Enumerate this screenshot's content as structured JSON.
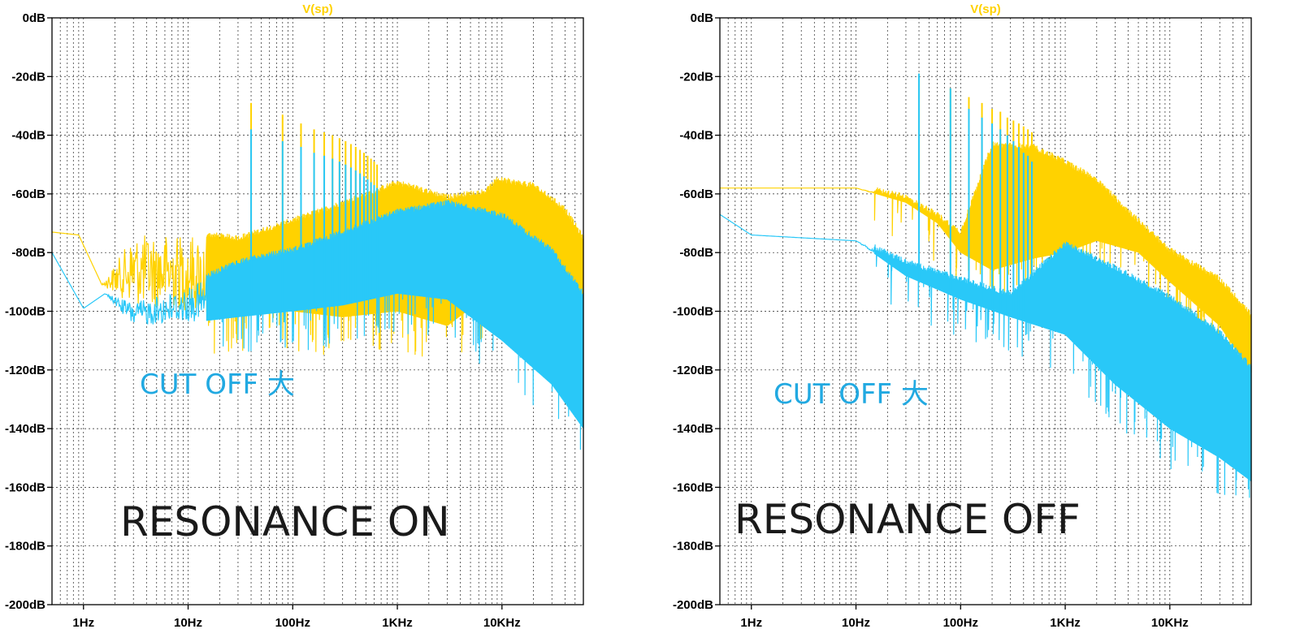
{
  "colors": {
    "yellow": "#FFD200",
    "blue": "#29C8F8",
    "note_blue": "#21A9E1",
    "grid": "#222222"
  },
  "chart_data": [
    {
      "type": "line",
      "trace_title": "V(sp)",
      "x_scale": "log",
      "xlim": [
        0.5,
        60000
      ],
      "ylim": [
        -200,
        0
      ],
      "x_ticks": [
        {
          "value": 1,
          "label": "1Hz"
        },
        {
          "value": 10,
          "label": "10Hz"
        },
        {
          "value": 100,
          "label": "100Hz"
        },
        {
          "value": 1000,
          "label": "1KHz"
        },
        {
          "value": 10000,
          "label": "10KHz"
        }
      ],
      "y_ticks": [
        {
          "value": 0,
          "label": "0dB"
        },
        {
          "value": -20,
          "label": "-20dB"
        },
        {
          "value": -40,
          "label": "-40dB"
        },
        {
          "value": -60,
          "label": "-60dB"
        },
        {
          "value": -80,
          "label": "-80dB"
        },
        {
          "value": -100,
          "label": "-100dB"
        },
        {
          "value": -120,
          "label": "-120dB"
        },
        {
          "value": -140,
          "label": "-140dB"
        },
        {
          "value": -160,
          "label": "-160dB"
        },
        {
          "value": -180,
          "label": "-180dB"
        },
        {
          "value": -200,
          "label": "-200dB"
        }
      ],
      "grid": true,
      "annotations": {
        "series_note": "CUT OFF 大",
        "mode_note": "RESONANCE ON"
      },
      "series": [
        {
          "color": "yellow",
          "envelope": [
            {
              "x": 0.5,
              "top": -73,
              "bottom": -73
            },
            {
              "x": 0.9,
              "top": -74,
              "bottom": -74
            },
            {
              "x": 1.5,
              "top": -91,
              "bottom": -91
            },
            {
              "x": 3,
              "top": -74,
              "bottom": -98
            },
            {
              "x": 10,
              "top": -74,
              "bottom": -100
            },
            {
              "x": 30,
              "top": -76,
              "bottom": -101
            },
            {
              "x": 100,
              "top": -70,
              "bottom": -100
            },
            {
              "x": 300,
              "top": -64,
              "bottom": -102
            },
            {
              "x": 1000,
              "top": -57,
              "bottom": -100
            },
            {
              "x": 3000,
              "top": -62,
              "bottom": -105
            },
            {
              "x": 7000,
              "top": -60,
              "bottom": -95
            },
            {
              "x": 9000,
              "top": -56,
              "bottom": -88
            },
            {
              "x": 20000,
              "top": -58,
              "bottom": -82
            },
            {
              "x": 40000,
              "top": -66,
              "bottom": -90
            },
            {
              "x": 60000,
              "top": -76,
              "bottom": -96
            }
          ],
          "peaks": [
            {
              "x": 40,
              "y": -29
            },
            {
              "x": 80,
              "y": -33
            },
            {
              "x": 120,
              "y": -36
            },
            {
              "x": 160,
              "y": -38
            },
            {
              "x": 200,
              "y": -39
            },
            {
              "x": 240,
              "y": -40
            },
            {
              "x": 280,
              "y": -41
            },
            {
              "x": 320,
              "y": -42
            },
            {
              "x": 360,
              "y": -43
            },
            {
              "x": 400,
              "y": -44
            },
            {
              "x": 440,
              "y": -45
            },
            {
              "x": 480,
              "y": -46
            },
            {
              "x": 520,
              "y": -47
            },
            {
              "x": 560,
              "y": -48
            },
            {
              "x": 600,
              "y": -49
            },
            {
              "x": 640,
              "y": -50
            }
          ]
        },
        {
          "color": "blue",
          "envelope": [
            {
              "x": 0.5,
              "top": -80,
              "bottom": -80
            },
            {
              "x": 1,
              "top": -99,
              "bottom": -99
            },
            {
              "x": 1.6,
              "top": -94,
              "bottom": -94
            },
            {
              "x": 3,
              "top": -97,
              "bottom": -105
            },
            {
              "x": 10,
              "top": -92,
              "bottom": -104
            },
            {
              "x": 30,
              "top": -84,
              "bottom": -102
            },
            {
              "x": 100,
              "top": -80,
              "bottom": -100
            },
            {
              "x": 300,
              "top": -74,
              "bottom": -98
            },
            {
              "x": 1000,
              "top": -67,
              "bottom": -94
            },
            {
              "x": 3000,
              "top": -64,
              "bottom": -96
            },
            {
              "x": 10000,
              "top": -68,
              "bottom": -110
            },
            {
              "x": 30000,
              "top": -80,
              "bottom": -125
            },
            {
              "x": 60000,
              "top": -95,
              "bottom": -140
            }
          ],
          "peaks": [
            {
              "x": 40,
              "y": -38
            },
            {
              "x": 80,
              "y": -42
            },
            {
              "x": 120,
              "y": -44
            },
            {
              "x": 160,
              "y": -46
            },
            {
              "x": 200,
              "y": -47
            },
            {
              "x": 240,
              "y": -48
            },
            {
              "x": 280,
              "y": -49
            },
            {
              "x": 320,
              "y": -50
            },
            {
              "x": 360,
              "y": -51
            },
            {
              "x": 400,
              "y": -52
            },
            {
              "x": 440,
              "y": -53
            },
            {
              "x": 480,
              "y": -54
            },
            {
              "x": 520,
              "y": -55
            },
            {
              "x": 560,
              "y": -56
            },
            {
              "x": 600,
              "y": -57
            },
            {
              "x": 640,
              "y": -58
            }
          ]
        }
      ]
    },
    {
      "type": "line",
      "trace_title": "V(sp)",
      "x_scale": "log",
      "xlim": [
        0.5,
        60000
      ],
      "ylim": [
        -200,
        0
      ],
      "x_ticks": [
        {
          "value": 1,
          "label": "1Hz"
        },
        {
          "value": 10,
          "label": "10Hz"
        },
        {
          "value": 100,
          "label": "100Hz"
        },
        {
          "value": 1000,
          "label": "1KHz"
        },
        {
          "value": 10000,
          "label": "10KHz"
        }
      ],
      "y_ticks": [
        {
          "value": 0,
          "label": "0dB"
        },
        {
          "value": -20,
          "label": "-20dB"
        },
        {
          "value": -40,
          "label": "-40dB"
        },
        {
          "value": -60,
          "label": "-60dB"
        },
        {
          "value": -80,
          "label": "-80dB"
        },
        {
          "value": -100,
          "label": "-100dB"
        },
        {
          "value": -120,
          "label": "-120dB"
        },
        {
          "value": -140,
          "label": "-140dB"
        },
        {
          "value": -160,
          "label": "-160dB"
        },
        {
          "value": -180,
          "label": "-180dB"
        },
        {
          "value": -200,
          "label": "-200dB"
        }
      ],
      "grid": true,
      "annotations": {
        "series_note": "CUT OFF 大",
        "mode_note": "RESONANCE OFF"
      },
      "series": [
        {
          "color": "yellow",
          "envelope": [
            {
              "x": 0.5,
              "top": -58,
              "bottom": -58
            },
            {
              "x": 10,
              "top": -58,
              "bottom": -58
            },
            {
              "x": 30,
              "top": -62,
              "bottom": -63
            },
            {
              "x": 60,
              "top": -68,
              "bottom": -70
            },
            {
              "x": 100,
              "top": -74,
              "bottom": -80
            },
            {
              "x": 200,
              "top": -44,
              "bottom": -86
            },
            {
              "x": 500,
              "top": -45,
              "bottom": -82
            },
            {
              "x": 1000,
              "top": -50,
              "bottom": -80
            },
            {
              "x": 2000,
              "top": -56,
              "bottom": -76
            },
            {
              "x": 5000,
              "top": -70,
              "bottom": -80
            },
            {
              "x": 10000,
              "top": -80,
              "bottom": -90
            },
            {
              "x": 30000,
              "top": -90,
              "bottom": -105
            },
            {
              "x": 60000,
              "top": -102,
              "bottom": -121
            }
          ],
          "peaks": [
            {
              "x": 40,
              "y": -19
            },
            {
              "x": 80,
              "y": -24
            },
            {
              "x": 120,
              "y": -27
            },
            {
              "x": 160,
              "y": -29
            },
            {
              "x": 200,
              "y": -31
            },
            {
              "x": 240,
              "y": -32
            },
            {
              "x": 280,
              "y": -34
            },
            {
              "x": 320,
              "y": -35
            },
            {
              "x": 360,
              "y": -36
            },
            {
              "x": 400,
              "y": -37
            },
            {
              "x": 440,
              "y": -38
            },
            {
              "x": 480,
              "y": -39
            }
          ]
        },
        {
          "color": "blue",
          "envelope": [
            {
              "x": 0.5,
              "top": -67,
              "bottom": -67
            },
            {
              "x": 1,
              "top": -74,
              "bottom": -74
            },
            {
              "x": 10,
              "top": -76,
              "bottom": -76
            },
            {
              "x": 30,
              "top": -84,
              "bottom": -88
            },
            {
              "x": 100,
              "top": -90,
              "bottom": -96
            },
            {
              "x": 300,
              "top": -95,
              "bottom": -102
            },
            {
              "x": 1000,
              "top": -78,
              "bottom": -108
            },
            {
              "x": 3000,
              "top": -86,
              "bottom": -125
            },
            {
              "x": 10000,
              "top": -96,
              "bottom": -140
            },
            {
              "x": 30000,
              "top": -108,
              "bottom": -150
            },
            {
              "x": 60000,
              "top": -120,
              "bottom": -158
            }
          ],
          "peaks": [
            {
              "x": 40,
              "y": -19
            },
            {
              "x": 80,
              "y": -24
            },
            {
              "x": 120,
              "y": -31
            },
            {
              "x": 160,
              "y": -34
            },
            {
              "x": 200,
              "y": -36
            },
            {
              "x": 240,
              "y": -38
            },
            {
              "x": 280,
              "y": -40
            },
            {
              "x": 320,
              "y": -42
            },
            {
              "x": 360,
              "y": -44
            },
            {
              "x": 400,
              "y": -46
            },
            {
              "x": 440,
              "y": -47
            },
            {
              "x": 480,
              "y": -49
            }
          ]
        }
      ]
    }
  ]
}
